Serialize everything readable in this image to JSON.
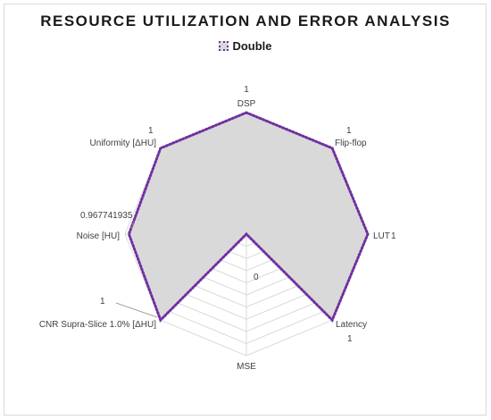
{
  "chart_data": {
    "type": "radar",
    "title": "RESOURCE UTILIZATION AND ERROR ANALYSIS",
    "categories": [
      "DSP",
      "Flip-flop",
      "LUT",
      "Latency",
      "MSE",
      "CNR Supra-Slice 1.0% [ΔHU]",
      "Noise [HU]",
      "Uniformity [ΔHU]"
    ],
    "series": [
      {
        "name": "Double",
        "values": [
          1,
          1,
          1,
          1,
          0,
          1,
          0.967741935,
          1
        ]
      }
    ],
    "data_labels": [
      "1",
      "1",
      "1",
      "1",
      "0",
      "1",
      "0.967741935",
      "1"
    ],
    "rlim": [
      0,
      1
    ],
    "grid_rings": 10,
    "legend_position": "top",
    "colors": {
      "series_line": "#7030a0",
      "series_fill": "#d9d9d9",
      "grid": "#d9d9d9"
    }
  }
}
